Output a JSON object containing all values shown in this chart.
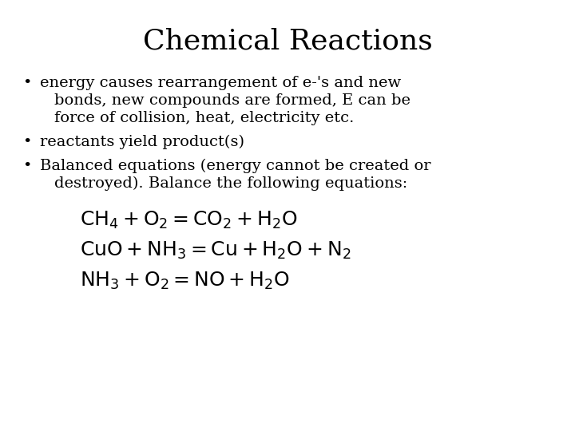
{
  "title": "Chemical Reactions",
  "background_color": "#ffffff",
  "text_color": "#000000",
  "title_fontsize": 26,
  "body_fontsize": 14,
  "equation_fontsize": 18,
  "bullet1_line1": "energy causes rearrangement of e-'s and new",
  "bullet1_line2": "bonds, new compounds are formed, E can be",
  "bullet1_line3": "force of collision, heat, electricity etc.",
  "bullet2": "reactants yield product(s)",
  "bullet3_line1": "Balanced equations (energy cannot be created or",
  "bullet3_line2": "destroyed). Balance the following equations:",
  "eq1": "$\\mathrm{CH_4 + O_2 = CO_2 + H_2O}$",
  "eq2": "$\\mathrm{CuO + NH_3 = Cu + H_2O + N_2}$",
  "eq3": "$\\mathrm{NH_3 + O_2 = NO + H_2O}$"
}
